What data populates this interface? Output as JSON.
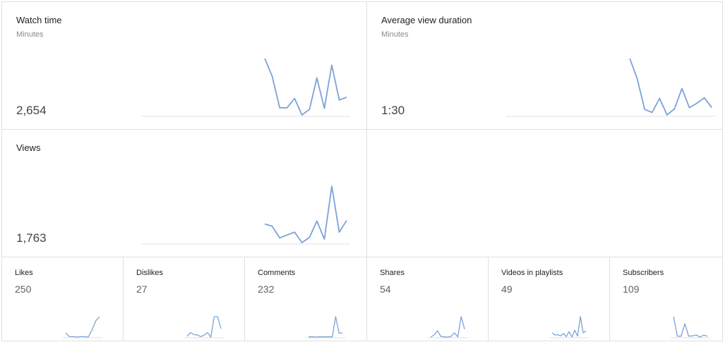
{
  "accent_color": "#7ba3d6",
  "baseline_color": "#e0e0e0",
  "big_cards": [
    {
      "title": "Watch time",
      "subtitle": "Minutes",
      "value": "2,654",
      "series": [
        92,
        60,
        3,
        3,
        20,
        -10,
        0,
        57,
        2,
        80,
        17,
        22
      ]
    },
    {
      "title": "Average view duration",
      "subtitle": "Minutes",
      "value": "1:30",
      "series": [
        100,
        67,
        17,
        12,
        35,
        8,
        18,
        51,
        20,
        27,
        36,
        20
      ]
    },
    {
      "title": "Views",
      "subtitle": "",
      "value": "1,763",
      "series": [
        35,
        31,
        11,
        16,
        21,
        3,
        12,
        40,
        9,
        100,
        21,
        41
      ]
    }
  ],
  "small_cards": [
    {
      "title": "Likes",
      "value": "250",
      "series": [
        11,
        2,
        2,
        1,
        2,
        2,
        1,
        18,
        40,
        50
      ]
    },
    {
      "title": "Dislikes",
      "value": "27",
      "series": [
        5,
        22,
        13,
        12,
        4,
        10,
        22,
        2,
        94,
        94,
        40
      ]
    },
    {
      "title": "Comments",
      "value": "232",
      "series": [
        2,
        2,
        1,
        2,
        2,
        2,
        2,
        2,
        100,
        20,
        20
      ]
    },
    {
      "title": "Shares",
      "value": "54",
      "series": [
        2,
        12,
        32,
        5,
        3,
        2,
        5,
        22,
        3,
        100,
        40
      ]
    },
    {
      "title": "Videos in playlists",
      "value": "49",
      "series": [
        27,
        17,
        19,
        13,
        24,
        10,
        32,
        8,
        38,
        12,
        98,
        27,
        35
      ]
    },
    {
      "title": "Subscribers",
      "value": "109",
      "series": [
        92,
        10,
        10,
        62,
        10,
        11,
        15,
        6,
        14,
        10
      ]
    }
  ]
}
